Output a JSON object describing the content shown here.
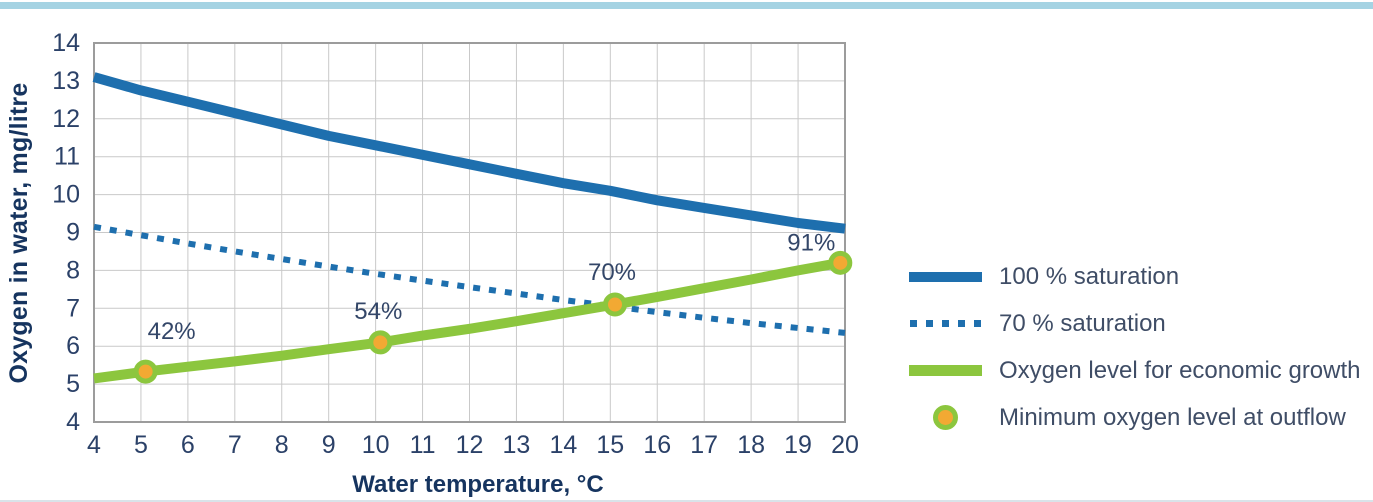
{
  "page": {
    "topbar_color": "#a5d3e3",
    "background": "#ffffff"
  },
  "colors": {
    "blue": "#1e6fae",
    "green": "#8cc63e",
    "orange": "#f2a933",
    "navy_title": "#16345f",
    "navy_tick": "#2b4168",
    "legend_text": "#3f4d66",
    "gridline": "#c9c9c9",
    "frame": "#9c9c9c"
  },
  "chart_data": {
    "type": "line",
    "title": "",
    "xlabel": "Water temperature, °C",
    "ylabel": "Oxygen in water, mg/litre",
    "xlim": [
      4,
      20
    ],
    "ylim": [
      4,
      14
    ],
    "xticks": [
      4,
      5,
      6,
      7,
      8,
      9,
      10,
      11,
      12,
      13,
      14,
      15,
      16,
      17,
      18,
      19,
      20
    ],
    "yticks": [
      4,
      5,
      6,
      7,
      8,
      9,
      10,
      11,
      12,
      13,
      14
    ],
    "grid": true,
    "legend_position": "right",
    "series": [
      {
        "name": "100 % saturation",
        "style": "solid",
        "color": "#1e6fae",
        "width": 10,
        "points": [
          [
            4,
            13.1
          ],
          [
            5,
            12.75
          ],
          [
            6,
            12.45
          ],
          [
            7,
            12.15
          ],
          [
            8,
            11.85
          ],
          [
            9,
            11.55
          ],
          [
            10,
            11.3
          ],
          [
            11,
            11.05
          ],
          [
            12,
            10.8
          ],
          [
            13,
            10.55
          ],
          [
            14,
            10.3
          ],
          [
            15,
            10.1
          ],
          [
            16,
            9.85
          ],
          [
            17,
            9.65
          ],
          [
            18,
            9.45
          ],
          [
            19,
            9.25
          ],
          [
            20,
            9.1
          ]
        ]
      },
      {
        "name": "70 % saturation",
        "style": "dotted",
        "color": "#1e6fae",
        "width": 6,
        "points": [
          [
            4,
            9.15
          ],
          [
            5,
            8.93
          ],
          [
            6,
            8.71
          ],
          [
            7,
            8.5
          ],
          [
            8,
            8.3
          ],
          [
            9,
            8.1
          ],
          [
            10,
            7.91
          ],
          [
            11,
            7.73
          ],
          [
            12,
            7.56
          ],
          [
            13,
            7.39
          ],
          [
            14,
            7.22
          ],
          [
            15,
            7.06
          ],
          [
            16,
            6.9
          ],
          [
            17,
            6.75
          ],
          [
            18,
            6.61
          ],
          [
            19,
            6.48
          ],
          [
            20,
            6.35
          ]
        ]
      },
      {
        "name": "Oxygen level for economic growth",
        "style": "solid",
        "color": "#8cc63e",
        "width": 10,
        "points": [
          [
            4,
            5.15
          ],
          [
            5.1,
            5.33
          ],
          [
            6,
            5.46
          ],
          [
            7,
            5.6
          ],
          [
            8,
            5.75
          ],
          [
            9,
            5.92
          ],
          [
            10.1,
            6.1
          ],
          [
            11,
            6.28
          ],
          [
            12,
            6.46
          ],
          [
            13,
            6.66
          ],
          [
            14,
            6.87
          ],
          [
            15.1,
            7.1
          ],
          [
            16,
            7.3
          ],
          [
            17,
            7.53
          ],
          [
            18,
            7.76
          ],
          [
            19,
            8.0
          ],
          [
            19.9,
            8.2
          ]
        ]
      }
    ],
    "markers": {
      "name": "Minimum oxygen level at outflow",
      "fill": "#f2a933",
      "ring": "#8cc63e",
      "points": [
        {
          "x": 5.1,
          "y": 5.33,
          "label": "42%"
        },
        {
          "x": 10.1,
          "y": 6.1,
          "label": "54%"
        },
        {
          "x": 15.1,
          "y": 7.1,
          "label": "70%"
        },
        {
          "x": 19.9,
          "y": 8.2,
          "label": "91%"
        }
      ]
    }
  }
}
